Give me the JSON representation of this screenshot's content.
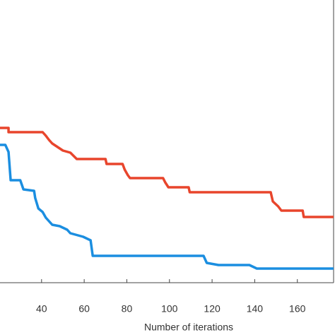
{
  "chart_data": {
    "type": "line",
    "x_label": "Number of iterations",
    "xlim": [
      20.5,
      177
    ],
    "ylim": [
      0,
      100
    ],
    "xticks": [
      40,
      60,
      80,
      100,
      120,
      140,
      160
    ],
    "series": [
      {
        "color": "#e8452c",
        "x": [
          20.5,
          24.5,
          24.5,
          40.5,
          42,
          43.5,
          45,
          47.5,
          50,
          53.5,
          56.5,
          70,
          70.5,
          78,
          79,
          80.5,
          81.5,
          97,
          98,
          99.5,
          109,
          109.5,
          147.5,
          148.5,
          151,
          152.5,
          162.5,
          163,
          177
        ],
        "values": [
          54.75,
          54.75,
          53.25,
          53.25,
          52,
          50.5,
          49.25,
          48,
          46.75,
          46,
          43.75,
          43.75,
          42,
          42,
          40,
          38,
          37,
          37,
          35.5,
          33.75,
          33.75,
          32,
          32,
          28.75,
          27,
          25.5,
          25.5,
          23.25,
          23.25
        ]
      },
      {
        "color": "#1b8ee0",
        "x": [
          20.5,
          23,
          24.5,
          25.5,
          30,
          31.5,
          36.5,
          37,
          38.5,
          40.5,
          42,
          45,
          48.5,
          52,
          53.5,
          59.5,
          63,
          64,
          116,
          117.5,
          123,
          137.5,
          141,
          177
        ],
        "values": [
          48.75,
          48.75,
          46.25,
          36.25,
          36.25,
          33,
          32.5,
          30,
          26.25,
          25,
          23,
          20.5,
          20,
          18.75,
          17.5,
          16.25,
          15,
          9.5,
          9.5,
          7,
          6.25,
          6.25,
          5,
          5
        ]
      }
    ]
  }
}
